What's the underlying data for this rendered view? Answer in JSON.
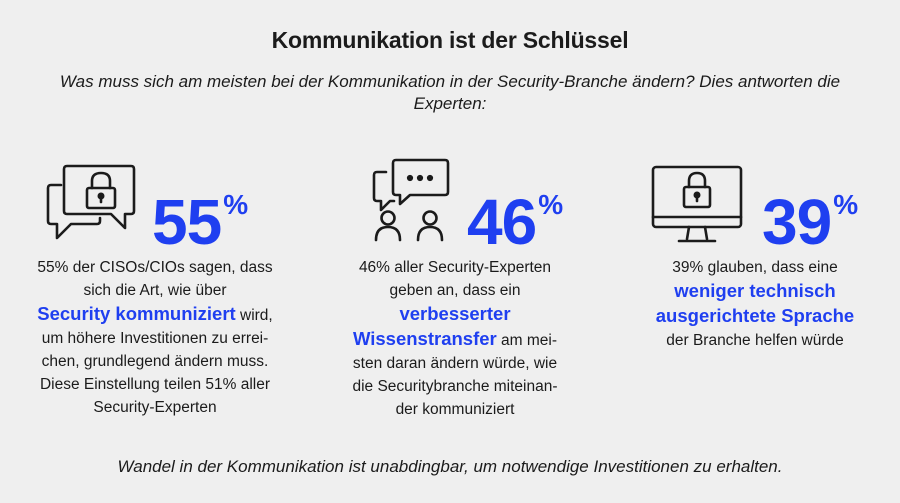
{
  "title": "Kommunikation ist der Schlüssel",
  "subtitle": "Was muss sich am meisten bei der Kommunikation in der Security-Branche ändern? Dies antworten die Experten:",
  "accent_color": "#1f3ff0",
  "stats": [
    {
      "icon": "chat-lock-icon",
      "value": "55",
      "unit": "%",
      "lines": [
        {
          "text": "55% der CISOs/CIOs sagen, dass"
        },
        {
          "text": "sich die Art, wie über"
        },
        {
          "pre": "",
          "highlight": "Security kommuniziert",
          "post": " wird,"
        },
        {
          "text": "um höhere Investitionen zu errei-"
        },
        {
          "text": "chen, grundlegend ändern muss."
        },
        {
          "text": "Diese Einstellung teilen 51% aller"
        },
        {
          "text": "Security-Experten"
        }
      ]
    },
    {
      "icon": "people-chat-icon",
      "value": "46",
      "unit": "%",
      "lines": [
        {
          "text": "46% aller Security-Experten"
        },
        {
          "text": "geben an, dass ein"
        },
        {
          "pre": "",
          "highlight": "verbesserter",
          "post": ""
        },
        {
          "pre": "",
          "highlight": "Wissenstransfer",
          "post": " am mei-"
        },
        {
          "text": "sten daran ändern würde, wie"
        },
        {
          "text": "die Securitybranche miteinan-"
        },
        {
          "text": "der kommuniziert"
        }
      ]
    },
    {
      "icon": "monitor-lock-icon",
      "value": "39",
      "unit": "%",
      "lines": [
        {
          "text": "39% glauben, dass eine"
        },
        {
          "pre": "",
          "highlight": "weniger technisch",
          "post": ""
        },
        {
          "pre": "",
          "highlight": "ausgerichtete Sprache",
          "post": ""
        },
        {
          "text": "der Branche helfen würde"
        }
      ]
    }
  ],
  "footer": "Wandel in der Kommunikation ist unabdingbar, um notwendige Investitionen zu erhalten."
}
